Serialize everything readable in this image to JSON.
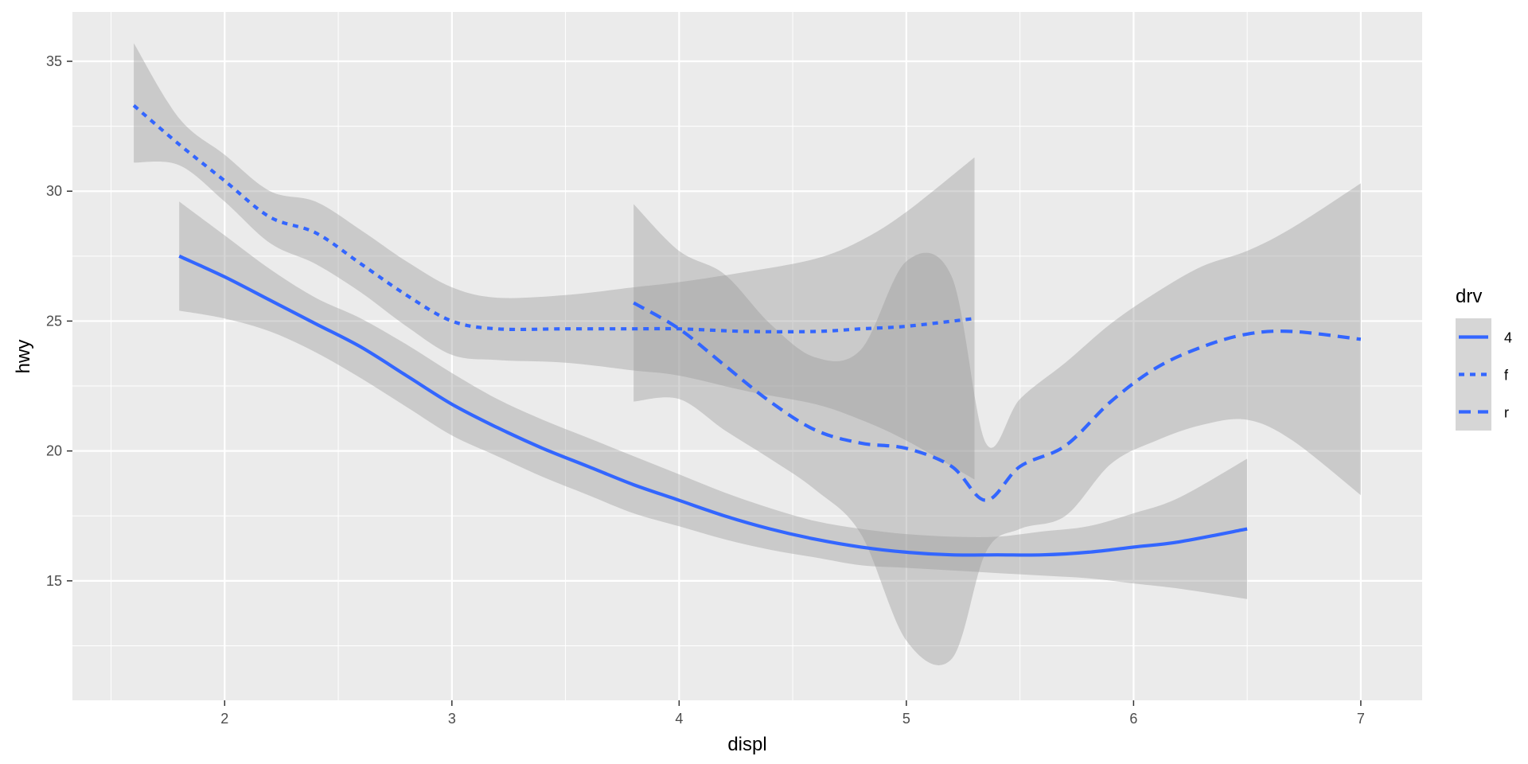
{
  "chart_data": {
    "type": "line",
    "xlabel": "displ",
    "ylabel": "hwy",
    "xlim": [
      1.33,
      7.27
    ],
    "ylim": [
      10.4,
      36.9
    ],
    "x_ticks": [
      2,
      3,
      4,
      5,
      6,
      7
    ],
    "y_ticks": [
      15,
      20,
      25,
      30,
      35
    ],
    "grid": true,
    "legend": {
      "title": "drv",
      "placement": "right",
      "entries": [
        "4",
        "f",
        "r"
      ]
    },
    "colors": {
      "line": "#3366ff",
      "ribbon": "#999999",
      "panel": "#ebebeb",
      "grid": "#ffffff"
    },
    "series": [
      {
        "name": "4",
        "linetype": "solid",
        "x": [
          1.8,
          2.0,
          2.2,
          2.4,
          2.6,
          2.8,
          3.0,
          3.2,
          3.4,
          3.6,
          3.8,
          4.0,
          4.2,
          4.4,
          4.6,
          4.8,
          5.0,
          5.2,
          5.4,
          5.6,
          5.8,
          6.0,
          6.2,
          6.5
        ],
        "y": [
          27.5,
          26.7,
          25.8,
          24.9,
          24.0,
          22.9,
          21.8,
          20.9,
          20.1,
          19.4,
          18.7,
          18.1,
          17.5,
          17.0,
          16.6,
          16.3,
          16.1,
          16.0,
          16.0,
          16.0,
          16.1,
          16.3,
          16.5,
          17.0
        ],
        "lower": [
          25.4,
          25.1,
          24.6,
          23.8,
          22.8,
          21.7,
          20.6,
          19.8,
          19.0,
          18.3,
          17.6,
          17.1,
          16.6,
          16.2,
          15.9,
          15.6,
          15.5,
          15.4,
          15.3,
          15.2,
          15.1,
          14.9,
          14.7,
          14.3
        ],
        "upper": [
          29.6,
          28.3,
          27.0,
          25.9,
          25.1,
          24.1,
          23.0,
          22.0,
          21.2,
          20.5,
          19.8,
          19.1,
          18.4,
          17.8,
          17.3,
          17.0,
          16.8,
          16.7,
          16.7,
          16.9,
          17.1,
          17.6,
          18.2,
          19.7
        ]
      },
      {
        "name": "f",
        "linetype": "dotted",
        "x": [
          1.6,
          1.8,
          2.0,
          2.2,
          2.4,
          2.6,
          2.8,
          3.0,
          3.2,
          3.5,
          3.8,
          4.0,
          4.3,
          4.6,
          4.8,
          5.0,
          5.3
        ],
        "y": [
          33.3,
          31.8,
          30.4,
          29.0,
          28.4,
          27.2,
          26.0,
          25.0,
          24.7,
          24.7,
          24.7,
          24.7,
          24.6,
          24.6,
          24.7,
          24.8,
          25.1
        ],
        "lower": [
          31.1,
          31.0,
          29.6,
          28.0,
          27.2,
          26.1,
          24.8,
          23.7,
          23.5,
          23.4,
          23.1,
          22.9,
          22.3,
          21.8,
          21.2,
          20.4,
          18.9
        ],
        "upper": [
          35.7,
          32.8,
          31.4,
          30.0,
          29.6,
          28.5,
          27.3,
          26.3,
          25.9,
          26.0,
          26.3,
          26.5,
          26.9,
          27.4,
          28.1,
          29.2,
          31.3
        ]
      },
      {
        "name": "r",
        "linetype": "dashed",
        "x": [
          3.8,
          4.0,
          4.2,
          4.4,
          4.6,
          4.8,
          5.0,
          5.2,
          5.35,
          5.5,
          5.7,
          5.9,
          6.1,
          6.3,
          6.5,
          6.7,
          7.0
        ],
        "y": [
          25.7,
          24.7,
          23.3,
          21.9,
          20.8,
          20.3,
          20.1,
          19.4,
          18.1,
          19.4,
          20.2,
          21.9,
          23.2,
          24.0,
          24.5,
          24.6,
          24.3
        ],
        "lower": [
          21.9,
          22.0,
          20.8,
          19.7,
          18.5,
          16.8,
          12.7,
          12.0,
          16.1,
          17.0,
          17.5,
          19.5,
          20.4,
          21.0,
          21.2,
          20.4,
          18.3
        ],
        "upper": [
          29.5,
          27.7,
          26.8,
          24.9,
          23.6,
          23.9,
          27.3,
          26.7,
          20.3,
          22.0,
          23.4,
          24.9,
          26.1,
          27.1,
          27.7,
          28.6,
          30.3
        ]
      }
    ]
  }
}
